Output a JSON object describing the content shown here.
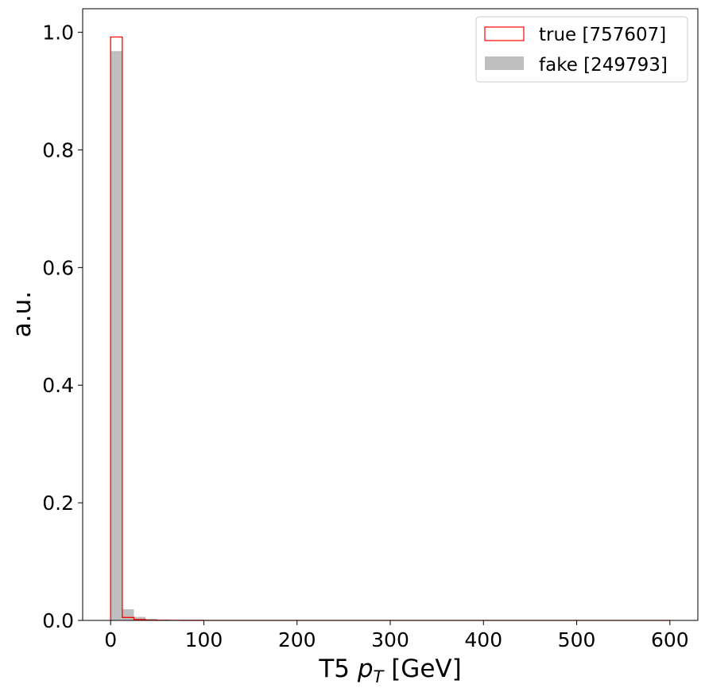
{
  "chart_data": {
    "type": "bar",
    "title": "",
    "xlabel": "T5 pT [GeV]",
    "xlabel_parts": {
      "prefix": "T5 ",
      "var": "p",
      "sub": "T",
      "suffix": " [GeV]"
    },
    "ylabel": "a.u.",
    "xlim": [
      -30,
      630
    ],
    "ylim": [
      0,
      1.04
    ],
    "x_ticks": [
      0,
      100,
      200,
      300,
      400,
      500,
      600
    ],
    "x_tick_labels": [
      "0",
      "100",
      "200",
      "300",
      "400",
      "500",
      "600"
    ],
    "y_ticks": [
      0.0,
      0.2,
      0.4,
      0.6,
      0.8,
      1.0
    ],
    "y_tick_labels": [
      "0.0",
      "0.2",
      "0.4",
      "0.6",
      "0.8",
      "1.0"
    ],
    "bin_edges": [
      0,
      12.5,
      25,
      37.5,
      50,
      62.5,
      75,
      87.5,
      100,
      112.5,
      125,
      137.5,
      150,
      162.5,
      175,
      187.5,
      200,
      212.5,
      225,
      237.5,
      250,
      262.5,
      275,
      287.5,
      300,
      312.5,
      325,
      337.5,
      350,
      362.5,
      375,
      387.5,
      400,
      412.5,
      425,
      437.5,
      450,
      462.5,
      475,
      487.5,
      500,
      512.5,
      525,
      537.5,
      550,
      562.5,
      575,
      587.5,
      600
    ],
    "series": [
      {
        "name": "true [757607]",
        "style": "step",
        "color": "#ff0000",
        "values": [
          0.992,
          0.005,
          0.0015,
          0.0006,
          0.0003,
          0.0002,
          0.0001,
          0.0001,
          5e-05,
          4e-05,
          3e-05,
          2e-05,
          2e-05,
          1e-05,
          1e-05,
          1e-05,
          0,
          0,
          0,
          0,
          0,
          0,
          0,
          0,
          0,
          0,
          0,
          0,
          0,
          0,
          0,
          0,
          0,
          0,
          0,
          0,
          0,
          0,
          0,
          0,
          0,
          0,
          0,
          0,
          0,
          0,
          0,
          0
        ]
      },
      {
        "name": "fake [249793]",
        "style": "filled",
        "color": "#bfbfbf",
        "values": [
          0.968,
          0.019,
          0.006,
          0.0025,
          0.0012,
          0.0008,
          0.0005,
          0.0003,
          0.0002,
          0.0001,
          0.0001,
          5e-05,
          3e-05,
          2e-05,
          1e-05,
          1e-05,
          0,
          0,
          0,
          0,
          0,
          0,
          0,
          0,
          0,
          0,
          0,
          0,
          0,
          0,
          0,
          0,
          0,
          0,
          0,
          0,
          0,
          0,
          0,
          0,
          0,
          0,
          0,
          0,
          0,
          0,
          0,
          0
        ]
      }
    ],
    "legend": {
      "placement": "top-right",
      "entries": [
        {
          "label": "true [757607]",
          "swatch": "outline",
          "color": "#ff0000"
        },
        {
          "label": "fake [249793]",
          "swatch": "filled",
          "color": "#bfbfbf"
        }
      ]
    },
    "grid": false
  }
}
